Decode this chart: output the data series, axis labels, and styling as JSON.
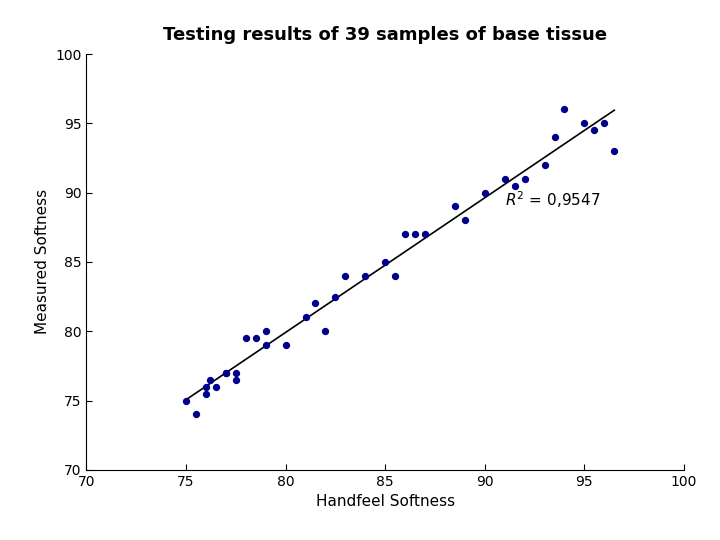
{
  "title": "Testing results of 39 samples of base tissue",
  "xlabel": "Handfeel Softness",
  "ylabel": "Measured Softness",
  "r2_x": 91.0,
  "r2_y": 89.5,
  "xlim": [
    70,
    100
  ],
  "ylim": [
    70,
    100
  ],
  "xticks": [
    70,
    75,
    80,
    85,
    90,
    95,
    100
  ],
  "yticks": [
    70,
    75,
    80,
    85,
    90,
    95,
    100
  ],
  "dot_color": "#00008B",
  "line_color": "#000000",
  "x": [
    75.0,
    75.5,
    76.0,
    76.0,
    76.2,
    76.5,
    77.0,
    77.0,
    77.5,
    77.5,
    78.0,
    78.5,
    79.0,
    79.0,
    80.0,
    81.0,
    81.5,
    82.0,
    82.5,
    83.0,
    84.0,
    85.0,
    85.5,
    86.0,
    86.5,
    87.0,
    88.5,
    89.0,
    90.0,
    91.0,
    91.5,
    92.0,
    93.0,
    93.5,
    94.0,
    95.0,
    95.5,
    96.0,
    96.5
  ],
  "y": [
    75.0,
    74.0,
    76.0,
    75.5,
    76.5,
    76.0,
    77.0,
    77.0,
    76.5,
    77.0,
    79.5,
    79.5,
    80.0,
    79.0,
    79.0,
    81.0,
    82.0,
    80.0,
    82.5,
    84.0,
    84.0,
    85.0,
    84.0,
    87.0,
    87.0,
    87.0,
    89.0,
    88.0,
    90.0,
    91.0,
    90.5,
    91.0,
    92.0,
    94.0,
    96.0,
    95.0,
    94.5,
    95.0,
    93.0
  ],
  "line_x_start": 75.0,
  "line_x_end": 96.5
}
